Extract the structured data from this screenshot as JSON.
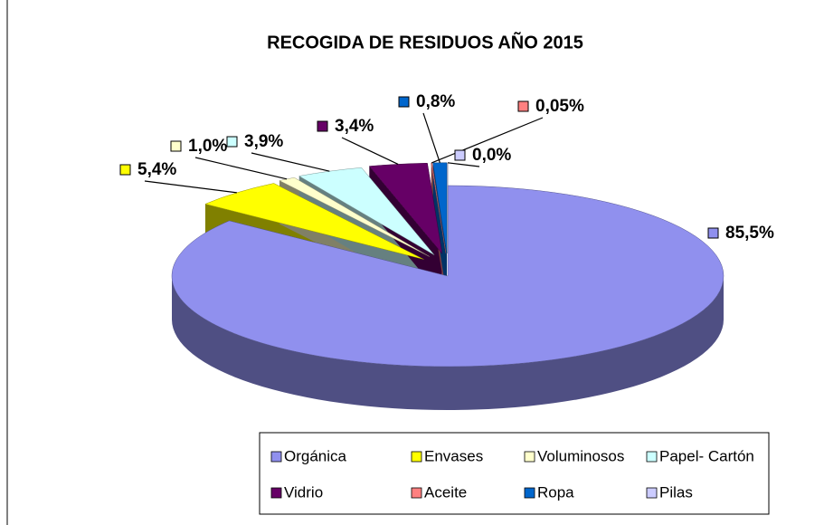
{
  "chart_data": {
    "type": "pie",
    "title": "RECOGIDA DE RESIDUOS AÑO 2015",
    "categories": [
      "Orgánica",
      "Envases",
      "Voluminosos",
      "Papel- Cartón",
      "Vidrio",
      "Aceite",
      "Ropa",
      "Pilas"
    ],
    "values": [
      85.5,
      5.4,
      1.0,
      3.9,
      3.4,
      0.05,
      0.8,
      0.0
    ],
    "value_labels": [
      "85,5%",
      "5,4%",
      "1,0%",
      "3,9%",
      "3,4%",
      "0,05%",
      "0,8%",
      "0,0%"
    ],
    "colors": [
      "#9090ee",
      "#ffff00",
      "#ffffcc",
      "#ccffff",
      "#660066",
      "#ff8080",
      "#0066cc",
      "#ccccff"
    ],
    "legend": "bottom"
  }
}
